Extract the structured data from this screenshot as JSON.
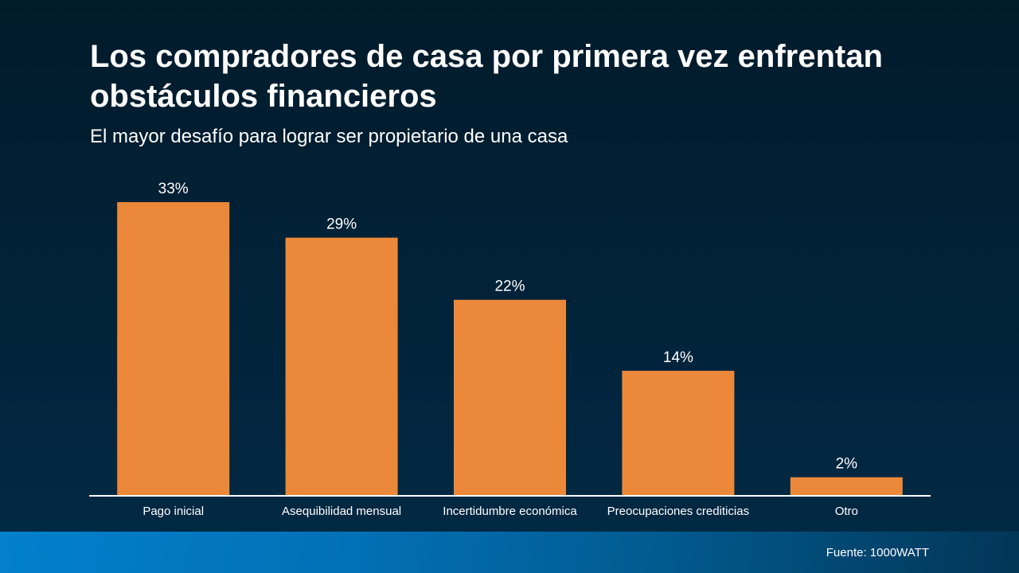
{
  "chart_data": {
    "type": "bar",
    "title": "Los compradores de casa por primera vez enfrentan obstáculos financieros",
    "subtitle": "El mayor desafío para lograr ser propietario de una casa",
    "categories": [
      "Pago inicial",
      "Asequibilidad mensual",
      "Incertidumbre económica",
      "Preocupaciones crediticias",
      "Otro"
    ],
    "values": [
      33,
      29,
      22,
      14,
      2
    ],
    "data_labels": [
      "33%",
      "29%",
      "22%",
      "14%",
      "2%"
    ],
    "xlabel": "",
    "ylabel": "",
    "ylim": [
      0,
      33
    ],
    "grid": false,
    "legend": "none",
    "bar_color": "#ec8839",
    "axis_color": "#ffffff"
  },
  "source": "Fuente: 1000WATT"
}
